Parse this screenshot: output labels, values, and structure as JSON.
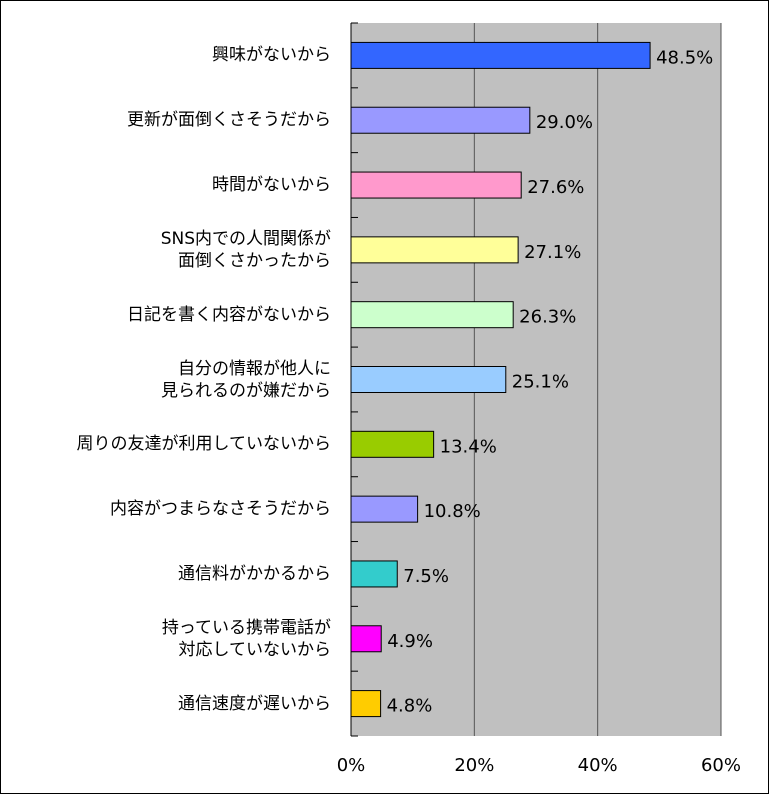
{
  "chart_data": {
    "type": "bar",
    "categories": [
      "興味がないから",
      "更新が面倒くさそうだから",
      "時間がないから",
      "SNS内での人間関係が\n面倒くさかったから",
      "日記を書く内容がないから",
      "自分の情報が他人に\n見られるのが嫌だから",
      "周りの友達が利用していないから",
      "内容がつまらなさそうだから",
      "通信料がかかるから",
      "持っている携帯電話が\n対応していないから",
      "通信速度が遅いから"
    ],
    "values": [
      48.5,
      29.0,
      27.6,
      27.1,
      26.3,
      25.1,
      13.4,
      10.8,
      7.5,
      4.9,
      4.8
    ],
    "value_labels": [
      "48.5%",
      "29.0%",
      "27.6%",
      "27.1%",
      "26.3%",
      "25.1%",
      "13.4%",
      "10.8%",
      "7.5%",
      "4.9%",
      "4.8%"
    ],
    "colors": [
      "#3366ff",
      "#9999ff",
      "#ff99cc",
      "#ffff99",
      "#ccffcc",
      "#99ccff",
      "#99cc00",
      "#9999ff",
      "#33cccc",
      "#ff00ff",
      "#ffcc00"
    ],
    "xlim": [
      0,
      60
    ],
    "xticks": [
      {
        "value": 0,
        "label": "0%"
      },
      {
        "value": 20,
        "label": "20%"
      },
      {
        "value": 40,
        "label": "40%"
      },
      {
        "value": 60,
        "label": "60%"
      }
    ],
    "grid": true
  }
}
